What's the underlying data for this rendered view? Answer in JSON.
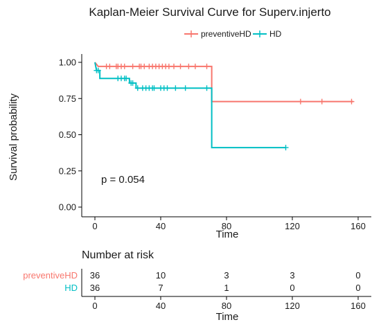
{
  "chart_data": {
    "type": "line",
    "subtype": "kaplan-meier",
    "title": "Kaplan-Meier Survival Curve for Superv.injerto",
    "xlabel": "Time",
    "ylabel": "Survival probability",
    "xlim": [
      0,
      160
    ],
    "ylim": [
      0,
      1
    ],
    "x_ticks": [
      0,
      40,
      80,
      120,
      160
    ],
    "y_ticks": [
      0,
      0.25,
      0.5,
      0.75,
      1.0
    ],
    "x_tick_labels": [
      "0",
      "40",
      "80",
      "120",
      "160"
    ],
    "y_tick_labels": [
      "0.00",
      "0.25",
      "0.50",
      "0.75",
      "1.00"
    ],
    "legend_position": "top",
    "annotation": "p = 0.054",
    "grid": false,
    "series": [
      {
        "name": "preventiveHD",
        "color": "#F8766D",
        "steps": [
          [
            0,
            1.0
          ],
          [
            2,
            0.972
          ],
          [
            71,
            0.972
          ],
          [
            71,
            0.729
          ],
          [
            157,
            0.729
          ]
        ],
        "censor_times": [
          7,
          9,
          13,
          14,
          16,
          18,
          23,
          27,
          28,
          30,
          33,
          35,
          37,
          39,
          41,
          43,
          45,
          48,
          52,
          57,
          61,
          68,
          125,
          138,
          156
        ]
      },
      {
        "name": "HD",
        "color": "#00BFC4",
        "steps": [
          [
            0,
            1.0
          ],
          [
            1,
            0.944
          ],
          [
            3,
            0.944
          ],
          [
            3,
            0.889
          ],
          [
            21,
            0.889
          ],
          [
            21,
            0.857
          ],
          [
            25,
            0.857
          ],
          [
            25,
            0.822
          ],
          [
            71,
            0.822
          ],
          [
            71,
            0.411
          ],
          [
            116,
            0.411
          ]
        ],
        "censor_times": [
          1,
          2,
          14,
          16,
          18,
          19,
          22,
          23,
          26,
          29,
          31,
          33,
          35,
          36,
          40,
          42,
          44,
          49,
          55,
          68,
          116
        ]
      }
    ]
  },
  "risk_table": {
    "title": "Number at risk",
    "xlabel": "Time",
    "times": [
      0,
      40,
      80,
      120,
      160
    ],
    "time_labels": [
      "0",
      "40",
      "80",
      "120",
      "160"
    ],
    "rows": [
      {
        "name": "preventiveHD",
        "color": "#F8766D",
        "values": [
          "36",
          "10",
          "3",
          "3",
          "0"
        ]
      },
      {
        "name": "HD",
        "color": "#00BFC4",
        "values": [
          "36",
          "7",
          "1",
          "0",
          "0"
        ]
      }
    ]
  }
}
